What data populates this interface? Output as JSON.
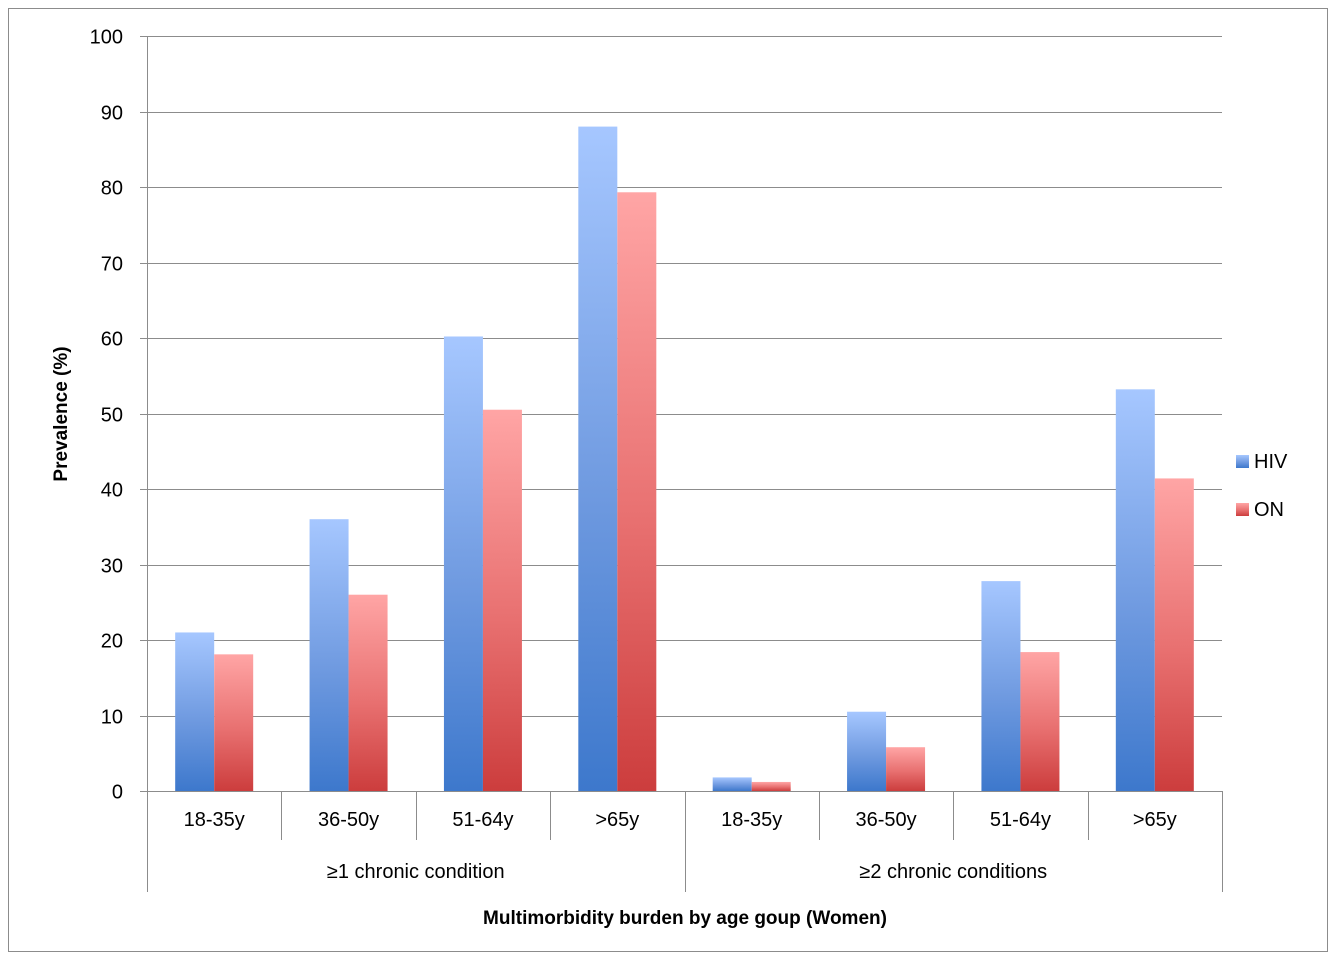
{
  "chart_data": {
    "type": "bar",
    "title": "",
    "xlabel": "Multimorbidity burden by age goup (Women)",
    "ylabel": "Prevalence (%)",
    "ylim": [
      0,
      100
    ],
    "yticks": [
      0,
      10,
      20,
      30,
      40,
      50,
      60,
      70,
      80,
      90,
      100
    ],
    "grid": true,
    "legend_position": "right",
    "groups": [
      {
        "label": "≥1 chronic condition",
        "categories": [
          "18-35y",
          "36-50y",
          "51-64y",
          ">65y"
        ]
      },
      {
        "label": "≥2 chronic conditions",
        "categories": [
          "18-35y",
          "36-50y",
          "51-64y",
          ">65y"
        ]
      }
    ],
    "categories": [
      "18-35y",
      "36-50y",
      "51-64y",
      ">65y",
      "18-35y",
      "36-50y",
      "51-64y",
      ">65y"
    ],
    "series": [
      {
        "name": "HIV",
        "color": "#4a7fcc",
        "values": [
          21,
          36,
          60.2,
          88,
          1.8,
          10.5,
          27.8,
          53.2
        ]
      },
      {
        "name": "ON",
        "color": "#d04545",
        "values": [
          18.1,
          26,
          50.5,
          79.3,
          1.2,
          5.8,
          18.4,
          41.4
        ]
      }
    ]
  }
}
